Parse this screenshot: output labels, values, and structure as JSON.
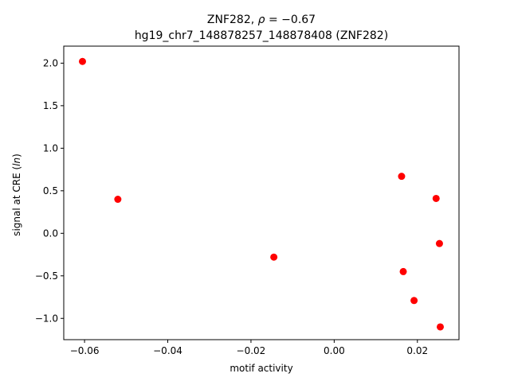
{
  "chart_data": {
    "type": "scatter",
    "title_line1": "ZNF282, ρ = −0.67",
    "title_line2": "hg19_chr7_148878257_148878408 (ZNF282)",
    "xlabel": "motif activity",
    "ylabel": "signal at CRE (ln)",
    "xlim": [
      -0.065,
      0.03
    ],
    "ylim": [
      -1.25,
      2.2
    ],
    "xticks": [
      -0.06,
      -0.04,
      -0.02,
      0.0,
      0.02
    ],
    "xtick_labels": [
      "−0.06",
      "−0.04",
      "−0.02",
      "0.00",
      "0.02"
    ],
    "yticks": [
      2.0,
      1.5,
      1.0,
      0.5,
      0.0,
      -0.5,
      -1.0
    ],
    "ytick_labels": [
      "2.0",
      "1.5",
      "1.0",
      "0.5",
      "0.0",
      "−0.5",
      "−1.0"
    ],
    "grid": false,
    "point_color": "#ff0000",
    "points": [
      {
        "x": -0.0605,
        "y": 2.02
      },
      {
        "x": -0.052,
        "y": 0.4
      },
      {
        "x": -0.0145,
        "y": -0.28
      },
      {
        "x": 0.0162,
        "y": 0.67
      },
      {
        "x": 0.0166,
        "y": -0.45
      },
      {
        "x": 0.0192,
        "y": -0.79
      },
      {
        "x": 0.0245,
        "y": 0.41
      },
      {
        "x": 0.0253,
        "y": -0.12
      },
      {
        "x": 0.0255,
        "y": -1.1
      }
    ]
  }
}
